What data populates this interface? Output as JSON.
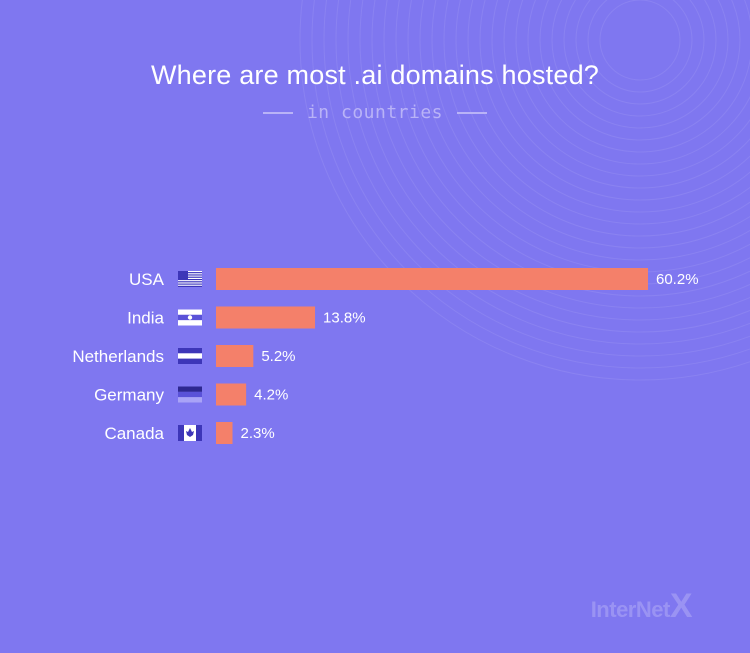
{
  "colors": {
    "background": "#7F77F0",
    "bar": "#F4806A",
    "text": "#ffffff",
    "subtitle": "#B9B3F7"
  },
  "chart_data": {
    "type": "bar",
    "orientation": "horizontal",
    "title": "Where are most .ai domains hosted?",
    "subtitle": "in countries",
    "categories": [
      "USA",
      "India",
      "Netherlands",
      "Germany",
      "Canada"
    ],
    "values": [
      60.2,
      13.8,
      5.2,
      4.2,
      2.3
    ],
    "value_labels": [
      "60.2%",
      "13.8%",
      "5.2%",
      "4.2%",
      "2.3%"
    ],
    "flags": [
      "usa-flag-icon",
      "india-flag-icon",
      "netherlands-flag-icon",
      "germany-flag-icon",
      "canada-flag-icon"
    ],
    "unit": "%",
    "grid": false,
    "legend": "none"
  },
  "brand": {
    "name": "InterNet",
    "mark": "X"
  }
}
